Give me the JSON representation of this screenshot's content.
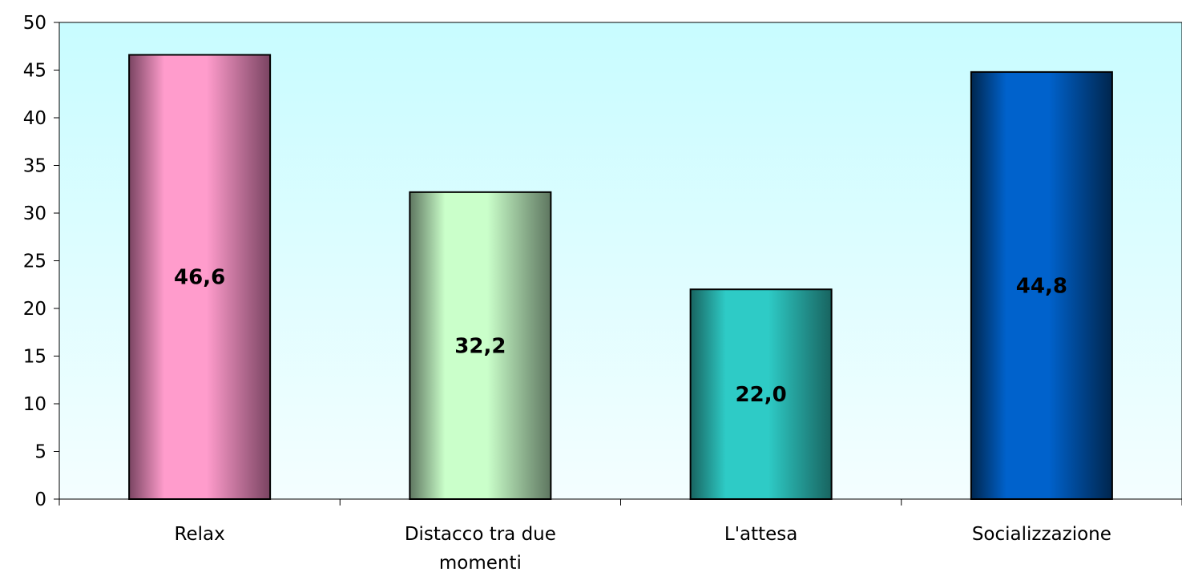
{
  "chart_data": {
    "type": "bar",
    "categories": [
      [
        "Relax"
      ],
      [
        "Distacco tra due",
        "momenti"
      ],
      [
        "L'attesa"
      ],
      [
        "Socializzazione"
      ]
    ],
    "values": [
      46.6,
      32.2,
      22.0,
      44.8
    ],
    "data_labels": [
      "46,6",
      "32,2",
      "22,0",
      "44,8"
    ],
    "ylim": [
      0,
      50
    ],
    "yticks": [
      0,
      5,
      10,
      15,
      20,
      25,
      30,
      35,
      40,
      45,
      50
    ],
    "grid": false,
    "legend": "none",
    "colors": {
      "plot_bg_top": "#c8fcff",
      "plot_bg_bottom": "#f4feff",
      "bars": [
        {
          "edge": "#7a4462",
          "center": "#ff9ccc"
        },
        {
          "edge": "#5e7660",
          "center": "#caffca"
        },
        {
          "edge": "#186460",
          "center": "#2ecbc6"
        },
        {
          "edge": "#00264e",
          "center": "#0062cc"
        }
      ]
    }
  }
}
